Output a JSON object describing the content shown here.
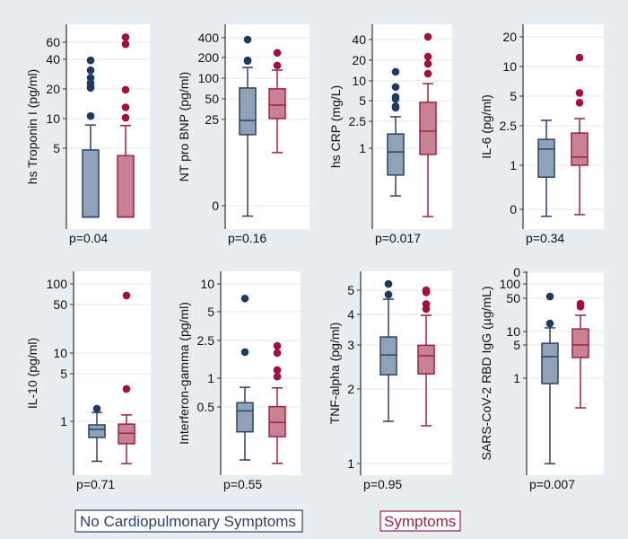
{
  "colors": {
    "background": "#e8edf1",
    "plot_area": "#ffffff",
    "grid": "#e3e8ec",
    "no_symptoms_fill": "#8fa2b6",
    "no_symptoms_stroke": "#2c4266",
    "no_symptoms_outlier": "#1e3a63",
    "symptoms_fill": "#c98194",
    "symptoms_stroke": "#9b2245",
    "symptoms_outlier": "#a50d3b"
  },
  "legend": {
    "position": "bottom",
    "items": [
      "No Cardiopulmonary Symptoms",
      "Symptoms"
    ]
  },
  "chart_data": [
    {
      "type": "box",
      "ylabel": "hs Troponin I (pg/ml)",
      "scale": "log",
      "grid": true,
      "ticks": [
        "60",
        "40",
        "20",
        "10",
        "5"
      ],
      "p_value": "p=0.04",
      "series": [
        {
          "name": "No Cardiopulmonary Symptoms",
          "q1": 1.0,
          "median": 1.0,
          "q3": 4.8,
          "whisker_low": 1.0,
          "whisker_high": 8.6,
          "outliers": [
            39,
            31,
            26,
            23,
            21,
            20.5,
            10.6
          ]
        },
        {
          "name": "Symptoms",
          "q1": 1.0,
          "median": 1.0,
          "q3": 4.2,
          "whisker_low": 1.0,
          "whisker_high": 8.5,
          "outliers": [
            67,
            57,
            19.6,
            13,
            10.2
          ]
        }
      ]
    },
    {
      "type": "box",
      "ylabel": "NT pro BNP  (pg/ml)",
      "scale": "log",
      "grid": true,
      "ticks": [
        "400",
        "200",
        "100",
        "50",
        "25",
        "0"
      ],
      "p_value": "p=0.16",
      "series": [
        {
          "name": "No Cardiopulmonary Symptoms",
          "q1": 20.6,
          "median": 24.7,
          "q3": 72,
          "whisker_low": -3,
          "whisker_high": 143,
          "outliers": [
            365,
            182,
            178
          ]
        },
        {
          "name": "Symptoms",
          "q1": 25.8,
          "median": 40.5,
          "q3": 70,
          "whisker_low": 15.4,
          "whisker_high": 131,
          "outliers": [
            234,
            153
          ]
        }
      ]
    },
    {
      "type": "box",
      "ylabel": "hs CRP (mg/L)",
      "scale": "log",
      "grid": true,
      "ticks": [
        "40",
        "20",
        "10",
        "5",
        "2.5",
        "1"
      ],
      "p_value": "p=0.017",
      "series": [
        {
          "name": "No Cardiopulmonary Symptoms",
          "q1": 0.4,
          "median": 0.88,
          "q3": 1.63,
          "whisker_low": 0.196,
          "whisker_high": 2.93,
          "outliers": [
            13.6,
            8.1,
            5.8,
            5.4,
            4.2,
            4.0
          ]
        },
        {
          "name": "Symptoms",
          "q1": 0.81,
          "median": 1.79,
          "q3": 4.8,
          "whisker_low": 0.097,
          "whisker_high": 9.1,
          "outliers": [
            45,
            22.9,
            17.9,
            12.8
          ]
        }
      ]
    },
    {
      "type": "box",
      "ylabel": "IL-6  (pg/ml)",
      "scale": "log",
      "grid": true,
      "ticks": [
        "20",
        "10",
        "5",
        "2.5",
        "1",
        "0"
      ],
      "p_value": "p=0.34",
      "series": [
        {
          "name": "No Cardiopulmonary Symptoms",
          "q1": 0.73,
          "median": 1.46,
          "q3": 1.83,
          "whisker_low": -0.16,
          "whisker_high": 2.85,
          "outliers": []
        },
        {
          "name": "Symptoms",
          "q1": 1.0,
          "median": 1.21,
          "q3": 2.12,
          "whisker_low": -0.12,
          "whisker_high": 2.97,
          "outliers": [
            12.3,
            5.4,
            4.3
          ]
        }
      ]
    },
    {
      "type": "box",
      "ylabel": "IL-10  (pg/ml)",
      "scale": "log",
      "grid": true,
      "ticks": [
        "100",
        "50",
        "10",
        "5",
        "1"
      ],
      "p_value": "p=0.71",
      "series": [
        {
          "name": "No Cardiopulmonary Symptoms",
          "q1": 0.58,
          "median": 0.76,
          "q3": 0.886,
          "whisker_low": 0.26,
          "whisker_high": 1.35,
          "outliers": [
            1.53
          ]
        },
        {
          "name": "Symptoms",
          "q1": 0.47,
          "median": 0.67,
          "q3": 0.91,
          "whisker_low": 0.24,
          "whisker_high": 1.24,
          "outliers": [
            69.6,
            2.98
          ]
        }
      ]
    },
    {
      "type": "box",
      "ylabel": "Interferon-gamma  (pg/ml)",
      "scale": "log",
      "grid": true,
      "ticks": [
        "10",
        "5",
        "2.5",
        "1",
        "0.5"
      ],
      "p_value": "p=0.55",
      "series": [
        {
          "name": "No Cardiopulmonary Symptoms",
          "q1": 0.27,
          "median": 0.45,
          "q3": 0.55,
          "whisker_low": 0.136,
          "whisker_high": 0.8,
          "outliers": [
            7.0,
            1.89
          ]
        },
        {
          "name": "Symptoms",
          "q1": 0.24,
          "median": 0.34,
          "q3": 0.5,
          "whisker_low": 0.125,
          "whisker_high": 0.79,
          "outliers": [
            2.2,
            1.85,
            1.22,
            1.04
          ]
        }
      ]
    },
    {
      "type": "box",
      "ylabel": "TNF-alpha  (pg/ml)",
      "scale": "log",
      "grid": true,
      "ticks": [
        "5",
        "4",
        "3",
        "2",
        "1"
      ],
      "p_value": "p=0.95",
      "series": [
        {
          "name": "No Cardiopulmonary Symptoms",
          "q1": 2.28,
          "median": 2.74,
          "q3": 3.24,
          "whisker_low": 1.48,
          "whisker_high": 4.6,
          "outliers": [
            5.3,
            4.8
          ]
        },
        {
          "name": "Symptoms",
          "q1": 2.3,
          "median": 2.72,
          "q3": 3.0,
          "whisker_low": 1.42,
          "whisker_high": 3.96,
          "outliers": [
            5.0,
            4.9,
            4.4,
            4.2
          ]
        }
      ]
    },
    {
      "type": "box",
      "ylabel": "SARS-CoV-2 RBD IgG  (µg/mL)",
      "scale": "log",
      "grid": true,
      "ticks": [
        "0",
        "100",
        "50",
        "10",
        "5",
        "1"
      ],
      "p_value": "p=0.007",
      "series": [
        {
          "name": "No Cardiopulmonary Symptoms",
          "q1": 0.77,
          "median": 2.87,
          "q3": 5.5,
          "whisker_low": 0.0154,
          "whisker_high": 11.7,
          "outliers": [
            54,
            14.5
          ]
        },
        {
          "name": "Symptoms",
          "q1": 2.74,
          "median": 5.06,
          "q3": 11.1,
          "whisker_low": 0.235,
          "whisker_high": 21.6,
          "outliers": [
            38,
            33
          ]
        }
      ]
    }
  ]
}
